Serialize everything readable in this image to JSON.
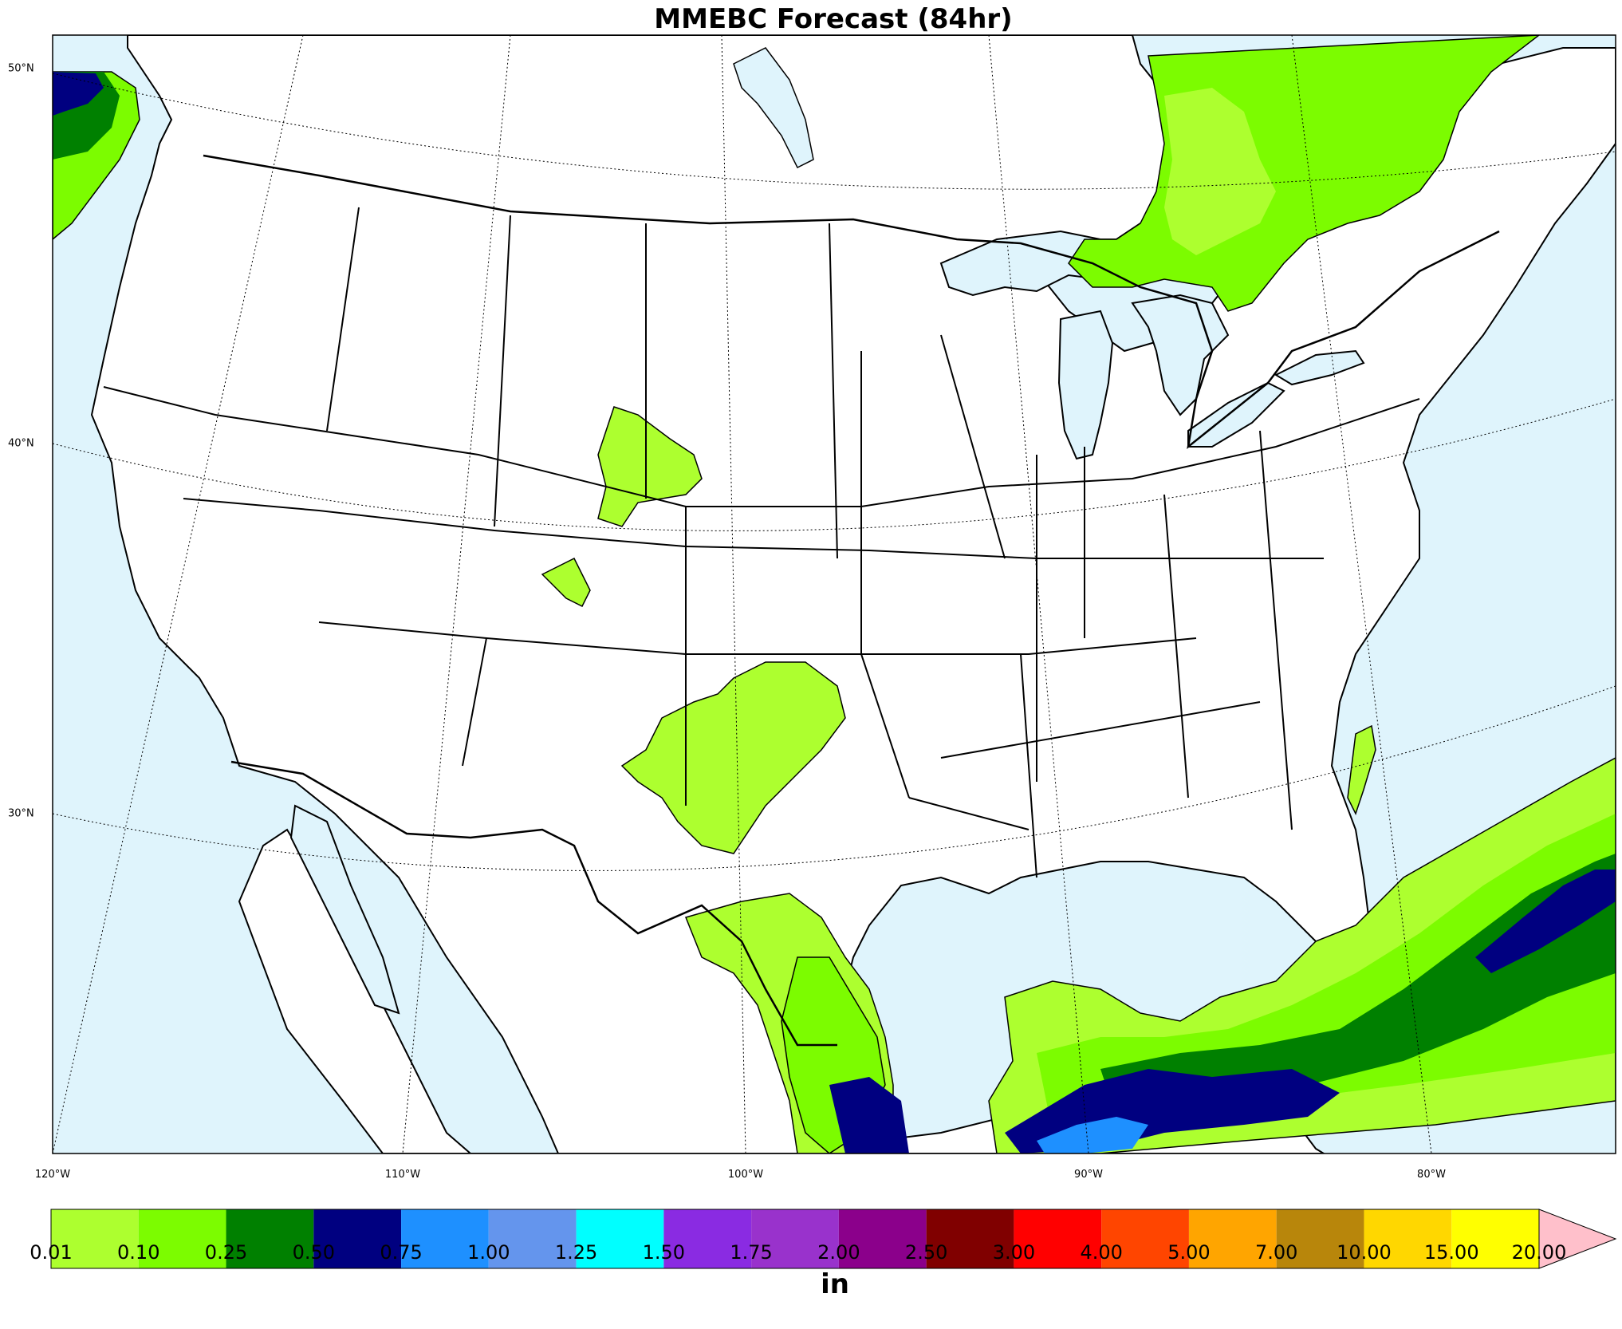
{
  "title": "MMEBC Forecast (84hr)",
  "lon_labels": [
    "120°W",
    "110°W",
    "100°W",
    "90°W",
    "80°W"
  ],
  "lat_labels": [
    "50°N",
    "40°N",
    "30°N"
  ],
  "colorbar": {
    "units": "in",
    "ticks": [
      "0.01",
      "0.10",
      "0.25",
      "0.50",
      "0.75",
      "1.00",
      "1.25",
      "1.50",
      "1.75",
      "2.00",
      "2.50",
      "3.00",
      "4.00",
      "5.00",
      "7.00",
      "10.00",
      "15.00",
      "20.00"
    ],
    "colors": [
      "#adff2f",
      "#7cfc00",
      "#008000",
      "#000080",
      "#1e90ff",
      "#6495ed",
      "#00ffff",
      "#8a2be2",
      "#9932cc",
      "#8b008b",
      "#800000",
      "#ff0000",
      "#ff4500",
      "#ffa500",
      "#b8860b",
      "#ffd700",
      "#ffff00"
    ],
    "extend_color": "#ffc0cb"
  },
  "colors": {
    "water": "#dff4fc",
    "land": "#ffffff"
  }
}
